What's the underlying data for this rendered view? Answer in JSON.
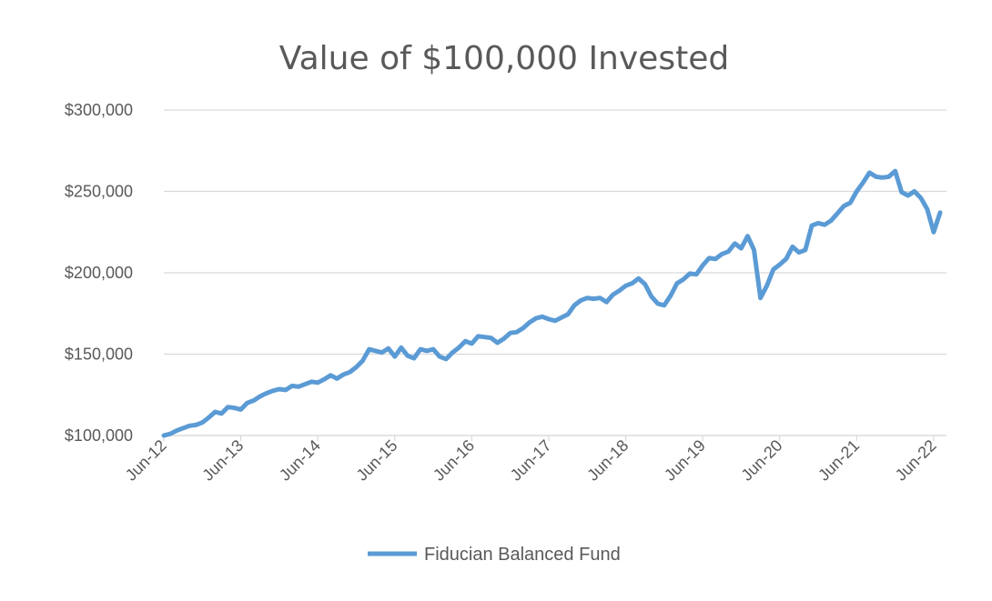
{
  "chart_data": {
    "type": "line",
    "title": "Value of $100,000 Invested",
    "xlabel": "",
    "ylabel": "",
    "ylim": [
      100000,
      300000
    ],
    "yticks": [
      100000,
      150000,
      200000,
      250000,
      300000
    ],
    "ytick_labels": [
      "$100,000",
      "$150,000",
      "$200,000",
      "$250,000",
      "$300,000"
    ],
    "xlim": [
      "2012-06",
      "2022-08"
    ],
    "xtick_labels": [
      "Jun-12",
      "Jun-13",
      "Jun-14",
      "Jun-15",
      "Jun-16",
      "Jun-17",
      "Jun-18",
      "Jun-19",
      "Jun-20",
      "Jun-21",
      "Jun-22"
    ],
    "grid": true,
    "legend": "bottom",
    "colors": {
      "series": "#5b9bd5",
      "grid": "#d9d9d9",
      "text": "#595959"
    },
    "series": [
      {
        "name": "Fiducian Balanced Fund",
        "x": [
          "2012-06",
          "2012-07",
          "2012-08",
          "2012-09",
          "2012-10",
          "2012-11",
          "2012-12",
          "2013-01",
          "2013-02",
          "2013-03",
          "2013-04",
          "2013-05",
          "2013-06",
          "2013-07",
          "2013-08",
          "2013-09",
          "2013-10",
          "2013-11",
          "2013-12",
          "2014-01",
          "2014-02",
          "2014-03",
          "2014-04",
          "2014-05",
          "2014-06",
          "2014-07",
          "2014-08",
          "2014-09",
          "2014-10",
          "2014-11",
          "2014-12",
          "2015-01",
          "2015-02",
          "2015-03",
          "2015-04",
          "2015-05",
          "2015-06",
          "2015-07",
          "2015-08",
          "2015-09",
          "2015-10",
          "2015-11",
          "2015-12",
          "2016-01",
          "2016-02",
          "2016-03",
          "2016-04",
          "2016-05",
          "2016-06",
          "2016-07",
          "2016-08",
          "2016-09",
          "2016-10",
          "2016-11",
          "2016-12",
          "2017-01",
          "2017-02",
          "2017-03",
          "2017-04",
          "2017-05",
          "2017-06",
          "2017-07",
          "2017-08",
          "2017-09",
          "2017-10",
          "2017-11",
          "2017-12",
          "2018-01",
          "2018-02",
          "2018-03",
          "2018-04",
          "2018-05",
          "2018-06",
          "2018-07",
          "2018-08",
          "2018-09",
          "2018-10",
          "2018-11",
          "2018-12",
          "2019-01",
          "2019-02",
          "2019-03",
          "2019-04",
          "2019-05",
          "2019-06",
          "2019-07",
          "2019-08",
          "2019-09",
          "2019-10",
          "2019-11",
          "2019-12",
          "2020-01",
          "2020-02",
          "2020-03",
          "2020-04",
          "2020-05",
          "2020-06",
          "2020-07",
          "2020-08",
          "2020-09",
          "2020-10",
          "2020-11",
          "2020-12",
          "2021-01",
          "2021-02",
          "2021-03",
          "2021-04",
          "2021-05",
          "2021-06",
          "2021-07",
          "2021-08",
          "2021-09",
          "2021-10",
          "2021-11",
          "2021-12",
          "2022-01",
          "2022-02",
          "2022-03",
          "2022-04",
          "2022-05",
          "2022-06",
          "2022-07"
        ],
        "values": [
          100000,
          101000,
          103000,
          104500,
          106000,
          106500,
          108000,
          111000,
          114500,
          113500,
          117500,
          117000,
          116000,
          120000,
          121500,
          124000,
          126000,
          127500,
          128500,
          128000,
          130500,
          130000,
          131500,
          133000,
          132500,
          134500,
          137000,
          135000,
          137500,
          139000,
          142000,
          146000,
          153000,
          152000,
          151000,
          153500,
          148500,
          154000,
          149000,
          147500,
          153000,
          152000,
          153000,
          148500,
          147000,
          151000,
          154000,
          158000,
          156500,
          161000,
          160500,
          160000,
          157000,
          159500,
          163000,
          163500,
          166000,
          169500,
          172000,
          173000,
          171500,
          170500,
          172500,
          174500,
          180000,
          183000,
          184500,
          184000,
          184500,
          182000,
          186500,
          189000,
          192000,
          193500,
          196500,
          193000,
          185500,
          181000,
          180000,
          186000,
          193500,
          196000,
          199500,
          199000,
          204500,
          209000,
          208500,
          211500,
          213000,
          218000,
          215000,
          222500,
          214000,
          184500,
          192000,
          202000,
          205000,
          208500,
          216000,
          212500,
          214000,
          229000,
          230500,
          229500,
          232000,
          236500,
          241000,
          243000,
          250000,
          255500,
          261500,
          259000,
          258500,
          259000,
          262500,
          249500,
          247500,
          250000,
          246000,
          239000,
          225000,
          237000
        ]
      }
    ]
  }
}
